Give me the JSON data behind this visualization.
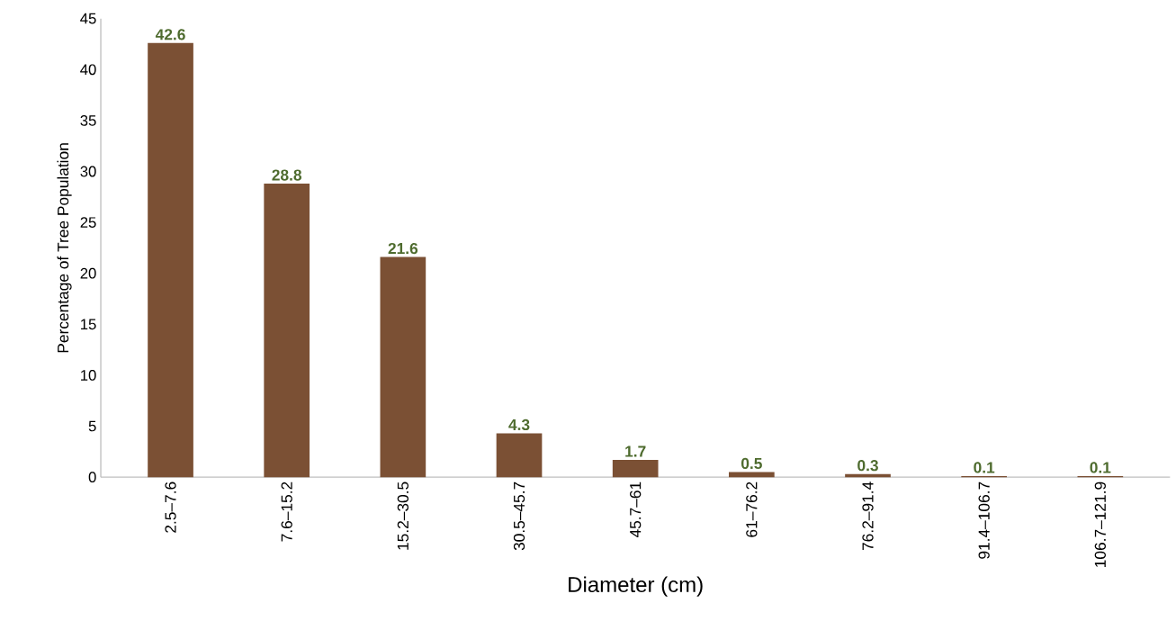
{
  "chart_data": {
    "type": "bar",
    "xlabel": "Diameter (cm)",
    "ylabel": "Percentage of Tree Population",
    "categories": [
      "2.5–7.6",
      "7.6–15.2",
      "15.2–30.5",
      "30.5–45.7",
      "45.7–61",
      "61–76.2",
      "76.2–91.4",
      "91.4–106.7",
      "106.7–121.9"
    ],
    "values": [
      42.6,
      28.8,
      21.6,
      4.3,
      1.7,
      0.5,
      0.3,
      0.1,
      0.1
    ],
    "color": "#7b5034",
    "ylim": [
      0,
      45
    ],
    "yticks": [
      0,
      5,
      10,
      15,
      20,
      25,
      30,
      35,
      40,
      45
    ],
    "data_labels": true
  }
}
